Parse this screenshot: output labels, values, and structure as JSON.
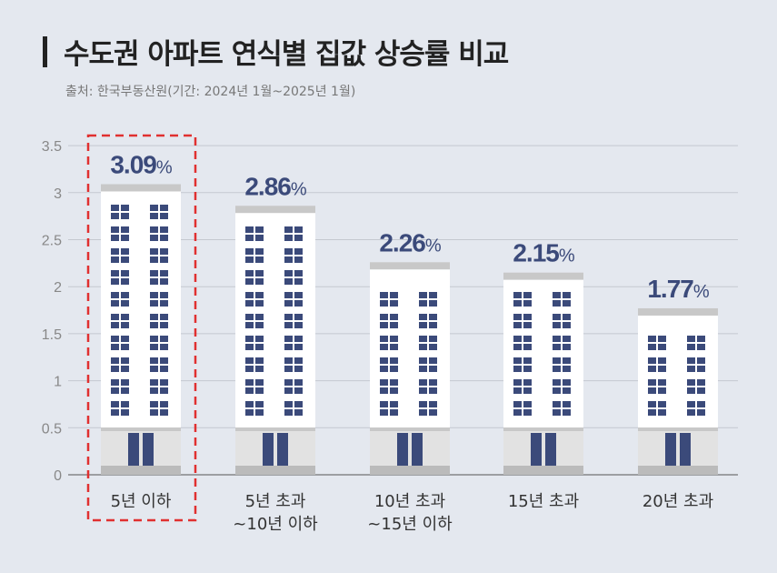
{
  "title": "수도권 아파트 연식별 집값 상승률 비교",
  "subtitle": "출처: 한국부동산원(기간: 2024년 1월~2025년 1월)",
  "colors": {
    "value_text": "#3b4a7a",
    "window": "#3b4a7a",
    "highlight": "#e03030",
    "roof": "#c8c8c8",
    "grid": "#c4c8d0"
  },
  "chart_data": {
    "type": "bar",
    "title": "수도권 아파트 연식별 집값 상승률 비교",
    "categories": [
      [
        "5년 이하"
      ],
      [
        "5년 초과",
        "~10년 이하"
      ],
      [
        "10년 초과",
        "~15년 이하"
      ],
      [
        "15년 초과"
      ],
      [
        "20년 초과"
      ]
    ],
    "values": [
      3.09,
      2.86,
      2.26,
      2.15,
      1.77
    ],
    "value_labels": [
      "3.09",
      "2.86",
      "2.26",
      "2.15",
      "1.77"
    ],
    "unit": "%",
    "yticks": [
      "0",
      "0.5",
      "1",
      "1.5",
      "2",
      "2.5",
      "3",
      "3.5"
    ],
    "ylim": [
      0,
      3.5
    ],
    "grid": true,
    "highlighted_category": 0
  }
}
